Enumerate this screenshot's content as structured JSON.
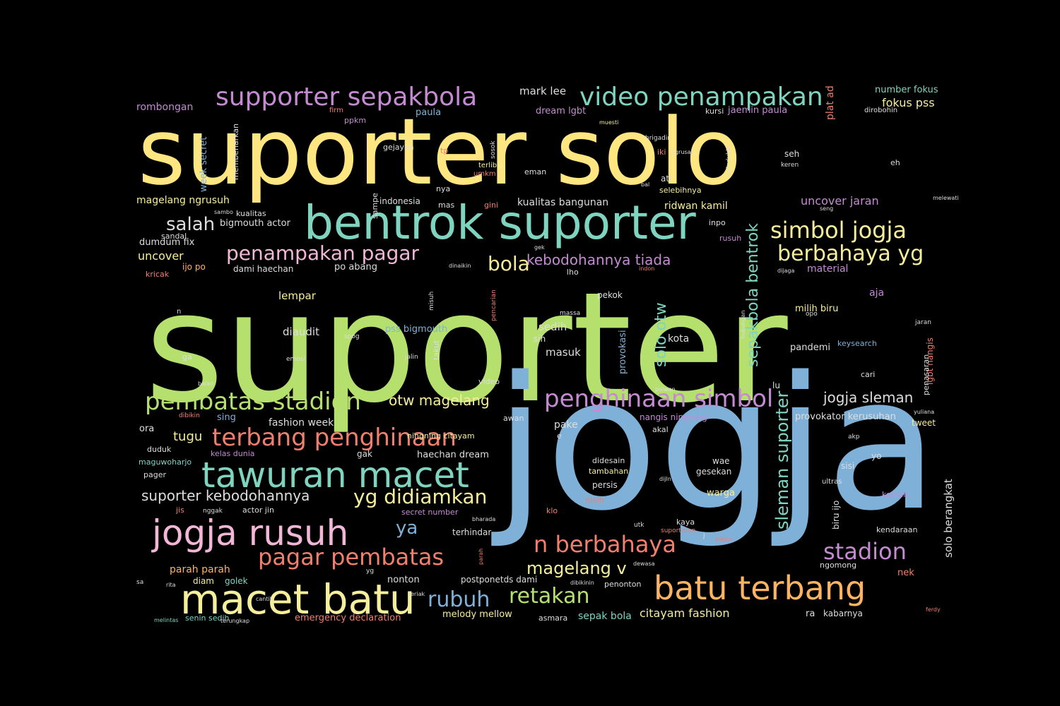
{
  "colors": {
    "background": "#000000",
    "yellow": "#FFE680",
    "green": "#B5E06E",
    "blue": "#7FB1D8",
    "teal": "#7FD4C0",
    "pink": "#F2B6D6",
    "purple": "#C48BD2",
    "orange": "#FDB462",
    "salmon": "#F07F6E",
    "light": "#DDDDDD",
    "lightyellow": "#F5EE9B"
  },
  "words": [
    {
      "text": "suporter",
      "c": "green"
    },
    {
      "text": "jogja",
      "c": "blue"
    },
    {
      "text": "suporter solo",
      "c": "yellow"
    },
    {
      "text": "bentrok suporter",
      "c": "teal"
    },
    {
      "text": "supporter sepakbola",
      "c": "purple"
    },
    {
      "text": "video penampakan",
      "c": "teal"
    },
    {
      "text": "batu terbang",
      "c": "orange"
    },
    {
      "text": "macet batu",
      "c": "lightyellow"
    },
    {
      "text": "jogja rusuh",
      "c": "pink"
    },
    {
      "text": "tawuran macet",
      "c": "teal"
    },
    {
      "text": "terbang penghinaan",
      "c": "salmon"
    },
    {
      "text": "pembatas stadion",
      "c": "green"
    },
    {
      "text": "penghinaan simbol",
      "c": "purple"
    },
    {
      "text": "pagar pembatas",
      "c": "salmon"
    },
    {
      "text": "n berbahaya",
      "c": "salmon"
    },
    {
      "text": "stadion",
      "c": "purple"
    },
    {
      "text": "simbol jogja",
      "c": "lightyellow"
    },
    {
      "text": "berbahaya yg",
      "c": "lightyellow"
    },
    {
      "text": "penampakan pagar",
      "c": "pink"
    },
    {
      "text": "yg didiamkan",
      "c": "lightyellow"
    },
    {
      "text": "retakan",
      "c": "green"
    },
    {
      "text": "rubuh",
      "c": "blue"
    },
    {
      "text": "salah",
      "c": "light"
    },
    {
      "text": "bola",
      "c": "lightyellow"
    },
    {
      "text": "ya",
      "c": "blue"
    },
    {
      "text": "magelang v",
      "c": "lightyellow"
    },
    {
      "text": "kebodohannya tiada",
      "c": "purple"
    },
    {
      "text": "jogja sleman",
      "c": "light"
    },
    {
      "text": "otw magelang",
      "c": "lightyellow"
    },
    {
      "text": "suporter kebodohannya",
      "c": "light"
    },
    {
      "text": "solo otw",
      "c": "teal"
    },
    {
      "text": "sepakbola bentrok",
      "c": "teal"
    },
    {
      "text": "sleman suporter",
      "c": "teal"
    },
    {
      "text": "rombongan",
      "c": "purple"
    },
    {
      "text": "mark lee",
      "c": "light"
    },
    {
      "text": "number fokus",
      "c": "teal"
    },
    {
      "text": "fokus pss",
      "c": "lightyellow"
    },
    {
      "text": "jaemin paula",
      "c": "purple"
    },
    {
      "text": "paula",
      "c": "blue"
    },
    {
      "text": "dream lgbt",
      "c": "purple"
    },
    {
      "text": "kursi",
      "c": "light"
    },
    {
      "text": "firm",
      "c": "salmon"
    },
    {
      "text": "ppkm",
      "c": "purple"
    },
    {
      "text": "muesti",
      "c": "lightyellow"
    },
    {
      "text": "dirobohin",
      "c": "light"
    },
    {
      "text": "plat ad",
      "c": "salmon"
    },
    {
      "text": "brigadir",
      "c": "light"
    },
    {
      "text": "gejayan",
      "c": "light"
    },
    {
      "text": "tp",
      "c": "salmon"
    },
    {
      "text": "iki",
      "c": "salmon"
    },
    {
      "text": "ngrusak",
      "c": "light"
    },
    {
      "text": "week secret",
      "c": "blue"
    },
    {
      "text": "membenarkan",
      "c": "light"
    },
    {
      "text": "sosok",
      "c": "light"
    },
    {
      "text": "terlibat",
      "c": "lightyellow"
    },
    {
      "text": "umkm",
      "c": "salmon"
    },
    {
      "text": "eman",
      "c": "light"
    },
    {
      "text": "didudukin",
      "c": "light"
    },
    {
      "text": "seh",
      "c": "light"
    },
    {
      "text": "keren",
      "c": "light"
    },
    {
      "text": "eh",
      "c": "light"
    },
    {
      "text": "ati",
      "c": "light"
    },
    {
      "text": "bal",
      "c": "light"
    },
    {
      "text": "selebihnya",
      "c": "lightyellow"
    },
    {
      "text": "nya",
      "c": "light"
    },
    {
      "text": "indonesia",
      "c": "light"
    },
    {
      "text": "mas",
      "c": "light"
    },
    {
      "text": "gini",
      "c": "salmon"
    },
    {
      "text": "kualitas bangunan",
      "c": "light"
    },
    {
      "text": "ridwan kamil",
      "c": "lightyellow"
    },
    {
      "text": "uncover jaran",
      "c": "purple"
    },
    {
      "text": "seng",
      "c": "light"
    },
    {
      "text": "melewati",
      "c": "light"
    },
    {
      "text": "magelang ngrusuh",
      "c": "lightyellow"
    },
    {
      "text": "sambo",
      "c": "light"
    },
    {
      "text": "kualitas",
      "c": "light"
    },
    {
      "text": "bigmouth actor",
      "c": "light"
    },
    {
      "text": "sandal",
      "c": "light"
    },
    {
      "text": "sampe",
      "c": "light"
    },
    {
      "text": "inpo",
      "c": "light"
    },
    {
      "text": "rusuh",
      "c": "purple"
    },
    {
      "text": "dumdum fix",
      "c": "light"
    },
    {
      "text": "uncover",
      "c": "lightyellow"
    },
    {
      "text": "ijo po",
      "c": "orange"
    },
    {
      "text": "kricak",
      "c": "salmon"
    },
    {
      "text": "dami haechan",
      "c": "light"
    },
    {
      "text": "po abang",
      "c": "light"
    },
    {
      "text": "gek",
      "c": "light"
    },
    {
      "text": "dinaikin",
      "c": "light"
    },
    {
      "text": "lho",
      "c": "light"
    },
    {
      "text": "indon",
      "c": "salmon"
    },
    {
      "text": "dijaga",
      "c": "light"
    },
    {
      "text": "material",
      "c": "purple"
    },
    {
      "text": "lempar",
      "c": "lightyellow"
    },
    {
      "text": "misuh",
      "c": "light"
    },
    {
      "text": "pencarian",
      "c": "salmon"
    },
    {
      "text": "massa",
      "c": "light"
    },
    {
      "text": "pekok",
      "c": "light"
    },
    {
      "text": "aja",
      "c": "purple"
    },
    {
      "text": "milih biru",
      "c": "lightyellow"
    },
    {
      "text": "opo",
      "c": "light"
    },
    {
      "text": "hubungan",
      "c": "light"
    },
    {
      "text": "jaran",
      "c": "light"
    },
    {
      "text": "n",
      "c": "light"
    },
    {
      "text": "diaudit",
      "c": "light"
    },
    {
      "text": "pss bigmouth",
      "c": "blue"
    },
    {
      "text": "spog",
      "c": "light"
    },
    {
      "text": "takut",
      "c": "light"
    },
    {
      "text": "sedih",
      "c": "light"
    },
    {
      "text": "sih",
      "c": "light"
    },
    {
      "text": "masuk",
      "c": "light"
    },
    {
      "text": "provokasi",
      "c": "blue"
    },
    {
      "text": "kota",
      "c": "light"
    },
    {
      "text": "pandemi",
      "c": "light"
    },
    {
      "text": "keysearch",
      "c": "blue"
    },
    {
      "text": "lgbt nangis",
      "c": "salmon"
    },
    {
      "text": "penasaran",
      "c": "light"
    },
    {
      "text": "ga",
      "c": "light"
    },
    {
      "text": "emosi",
      "c": "light"
    },
    {
      "text": "jalin",
      "c": "light"
    },
    {
      "text": "video",
      "c": "light"
    },
    {
      "text": "cari",
      "c": "light"
    },
    {
      "text": "balan",
      "c": "light"
    },
    {
      "text": "polwan",
      "c": "light"
    },
    {
      "text": "lu",
      "c": "light"
    },
    {
      "text": "dibikin",
      "c": "salmon"
    },
    {
      "text": "sing",
      "c": "blue"
    },
    {
      "text": "ningning citayam",
      "c": "lightyellow"
    },
    {
      "text": "awan",
      "c": "light"
    },
    {
      "text": "nangis ningning",
      "c": "purple"
    },
    {
      "text": "provokator kerusuhan",
      "c": "light"
    },
    {
      "text": "yuliana",
      "c": "light"
    },
    {
      "text": "tweet",
      "c": "lightyellow"
    },
    {
      "text": "ora",
      "c": "light"
    },
    {
      "text": "fashion week",
      "c": "light"
    },
    {
      "text": "pake",
      "c": "light"
    },
    {
      "text": "akal",
      "c": "light"
    },
    {
      "text": "tugu",
      "c": "lightyellow"
    },
    {
      "text": "kelas dunia",
      "c": "purple"
    },
    {
      "text": "gak",
      "c": "light"
    },
    {
      "text": "haechan dream",
      "c": "light"
    },
    {
      "text": "e",
      "c": "light"
    },
    {
      "text": "akp",
      "c": "light"
    },
    {
      "text": "duduk",
      "c": "light"
    },
    {
      "text": "maguwoharjo",
      "c": "teal"
    },
    {
      "text": "pager",
      "c": "light"
    },
    {
      "text": "didesain",
      "c": "light"
    },
    {
      "text": "tambahan",
      "c": "lightyellow"
    },
    {
      "text": "wae",
      "c": "light"
    },
    {
      "text": "gesekan",
      "c": "light"
    },
    {
      "text": "yo",
      "c": "light"
    },
    {
      "text": "sisi",
      "c": "light"
    },
    {
      "text": "persis",
      "c": "light"
    },
    {
      "text": "dijln",
      "c": "light"
    },
    {
      "text": "warga",
      "c": "lightyellow"
    },
    {
      "text": "ultras",
      "c": "light"
    },
    {
      "text": "komen",
      "c": "purple"
    },
    {
      "text": "solo berangkat",
      "c": "light"
    },
    {
      "text": "jis",
      "c": "salmon"
    },
    {
      "text": "nggak",
      "c": "light"
    },
    {
      "text": "actor jin",
      "c": "light"
    },
    {
      "text": "secret number",
      "c": "purple"
    },
    {
      "text": "milih",
      "c": "salmon"
    },
    {
      "text": "klo",
      "c": "salmon"
    },
    {
      "text": "biru ijo",
      "c": "light"
    },
    {
      "text": "bharada",
      "c": "light"
    },
    {
      "text": "terhindar",
      "c": "light"
    },
    {
      "text": "utk",
      "c": "light"
    },
    {
      "text": "kaya",
      "c": "light"
    },
    {
      "text": "suporteran",
      "c": "salmon"
    },
    {
      "text": "kendaraan",
      "c": "light"
    },
    {
      "text": "j",
      "c": "light"
    },
    {
      "text": "bagus",
      "c": "salmon"
    },
    {
      "text": "parah parah",
      "c": "orange"
    },
    {
      "text": "parah",
      "c": "salmon"
    },
    {
      "text": "dewasa",
      "c": "light"
    },
    {
      "text": "ngomong",
      "c": "light"
    },
    {
      "text": "nek",
      "c": "salmon"
    },
    {
      "text": "sa",
      "c": "light"
    },
    {
      "text": "rita",
      "c": "light"
    },
    {
      "text": "diam",
      "c": "lightyellow"
    },
    {
      "text": "golek",
      "c": "teal"
    },
    {
      "text": "yg",
      "c": "light"
    },
    {
      "text": "nonton",
      "c": "light"
    },
    {
      "text": "postponetds dami",
      "c": "light"
    },
    {
      "text": "dibikinin",
      "c": "light"
    },
    {
      "text": "penonton",
      "c": "light"
    },
    {
      "text": "cantik",
      "c": "light"
    },
    {
      "text": "teriak",
      "c": "light"
    },
    {
      "text": "ferdy",
      "c": "salmon"
    },
    {
      "text": "melintas",
      "c": "teal"
    },
    {
      "text": "senin sedih",
      "c": "teal"
    },
    {
      "text": "terungkap",
      "c": "light"
    },
    {
      "text": "emergency declaration",
      "c": "salmon"
    },
    {
      "text": "melody mellow",
      "c": "lightyellow"
    },
    {
      "text": "asmara",
      "c": "light"
    },
    {
      "text": "sepak bola",
      "c": "teal"
    },
    {
      "text": "citayam fashion",
      "c": "lightyellow"
    },
    {
      "text": "ra",
      "c": "light"
    },
    {
      "text": "kabarnya",
      "c": "light"
    }
  ]
}
